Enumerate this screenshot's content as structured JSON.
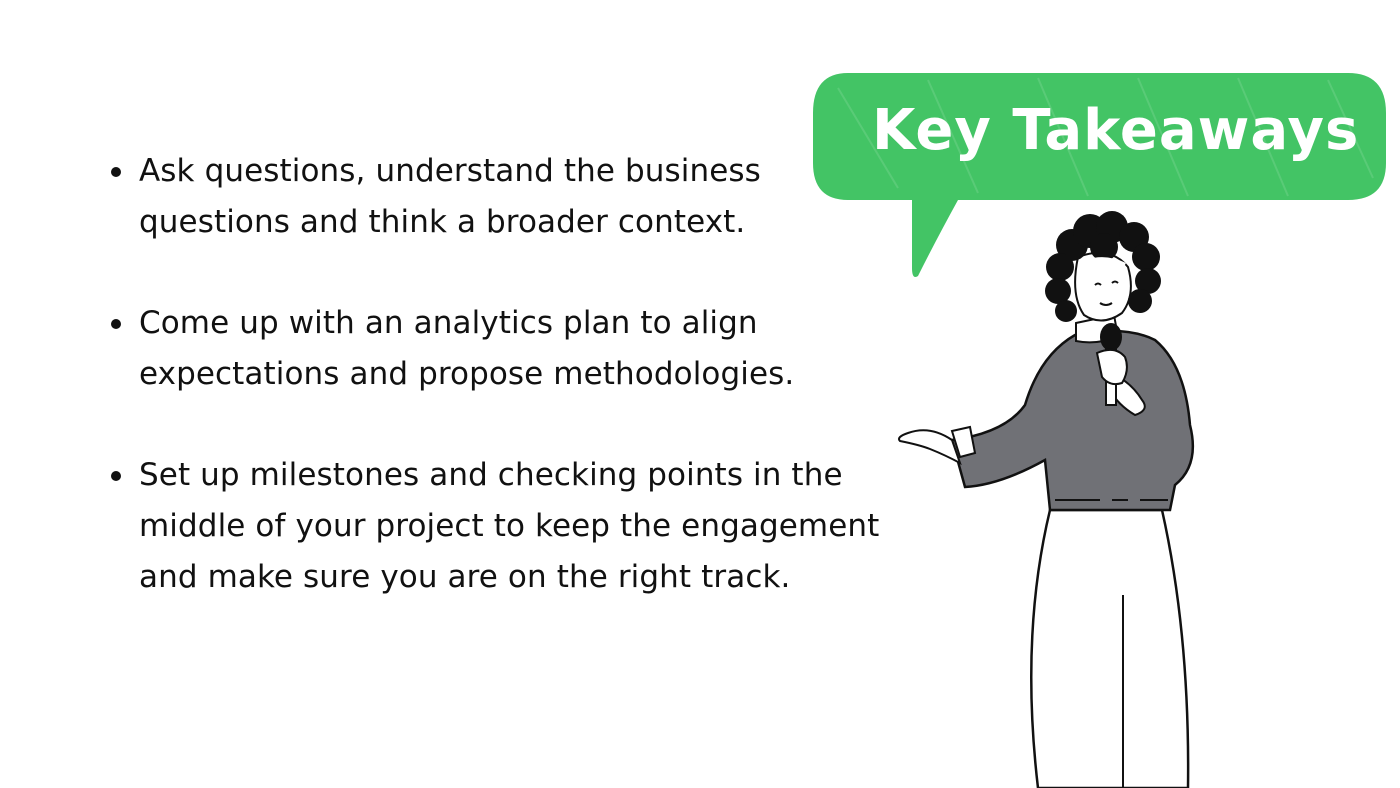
{
  "bubble": {
    "title": "Key Takeaways",
    "color": "#43c465"
  },
  "takeaways": [
    "Ask questions, understand the business questions and think a broader context.",
    "Come up with an analytics plan to align expectations and propose methodologies.",
    "Set up milestones and checking points in the middle of your project to keep the engagement and make sure you are on the right track."
  ],
  "illustration": {
    "icon": "speaker-woman-with-microphone",
    "sweater_color": "#707176",
    "hair_color": "#111111"
  }
}
